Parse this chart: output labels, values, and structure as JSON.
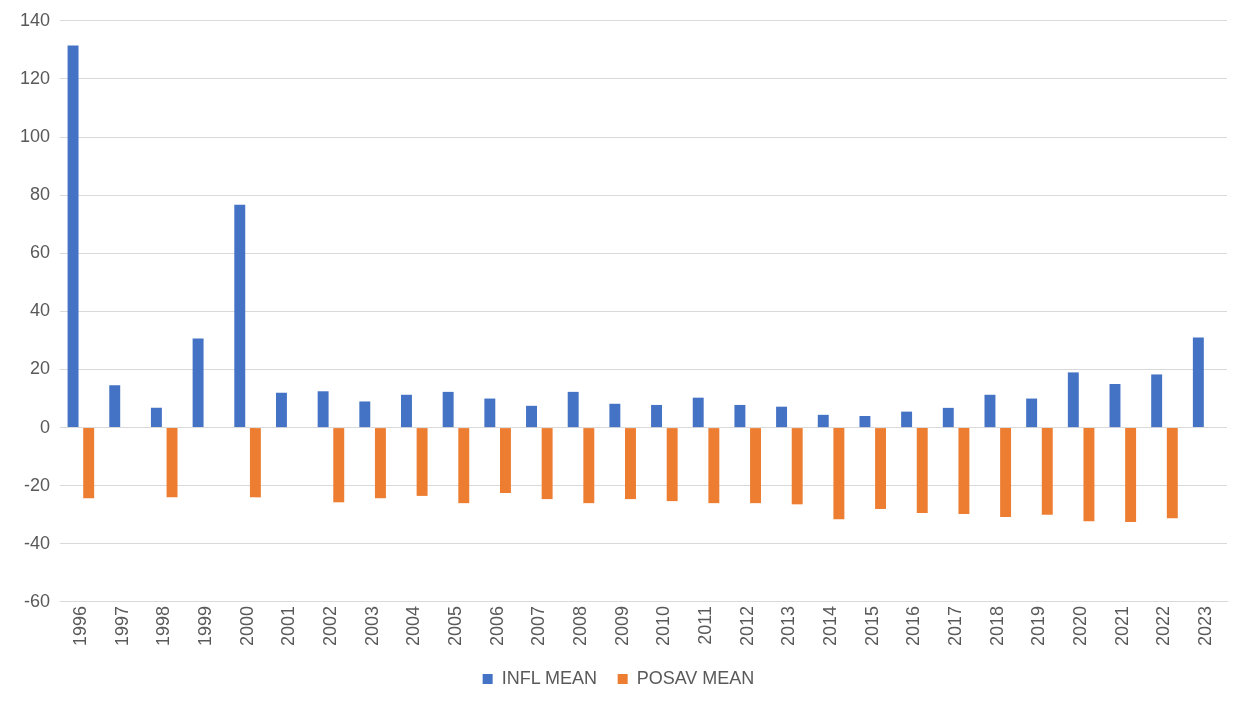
{
  "chart_data": {
    "type": "bar",
    "categories": [
      "1996",
      "1997",
      "1998",
      "1999",
      "2000",
      "2001",
      "2002",
      "2003",
      "2004",
      "2005",
      "2006",
      "2007",
      "2008",
      "2009",
      "2010",
      "2011",
      "2012",
      "2013",
      "2014",
      "2015",
      "2016",
      "2017",
      "2018",
      "2019",
      "2020",
      "2021",
      "2022",
      "2023"
    ],
    "series": [
      {
        "name": "INFL MEAN",
        "color": "#4472c4",
        "values": [
          131.5,
          14.6,
          6.8,
          30.7,
          76.7,
          12,
          12.5,
          9,
          11.3,
          12.3,
          10,
          7.5,
          12.3,
          8.2,
          7.8,
          10.3,
          7.8,
          7.2,
          4.4,
          4,
          5.5,
          6.8,
          11.3,
          10,
          19,
          15,
          18.3,
          31
        ]
      },
      {
        "name": "POSAV MEAN",
        "color": "#ed7d31",
        "values": [
          -24.3,
          null,
          -24,
          null,
          -24,
          null,
          -25.7,
          -24.3,
          -23.5,
          -26,
          -22.5,
          -24.6,
          -26,
          -24.6,
          -25.3,
          -26,
          -26,
          -26.4,
          -31.5,
          -28,
          -29.4,
          -29.7,
          -30.8,
          -30,
          -32.2,
          -32.5,
          -31.2,
          null
        ]
      }
    ],
    "ylim": [
      -60,
      140
    ],
    "yticks": [
      -60,
      -40,
      -20,
      0,
      20,
      40,
      60,
      80,
      100,
      120,
      140
    ],
    "grid": "y",
    "legend": "bottom"
  }
}
